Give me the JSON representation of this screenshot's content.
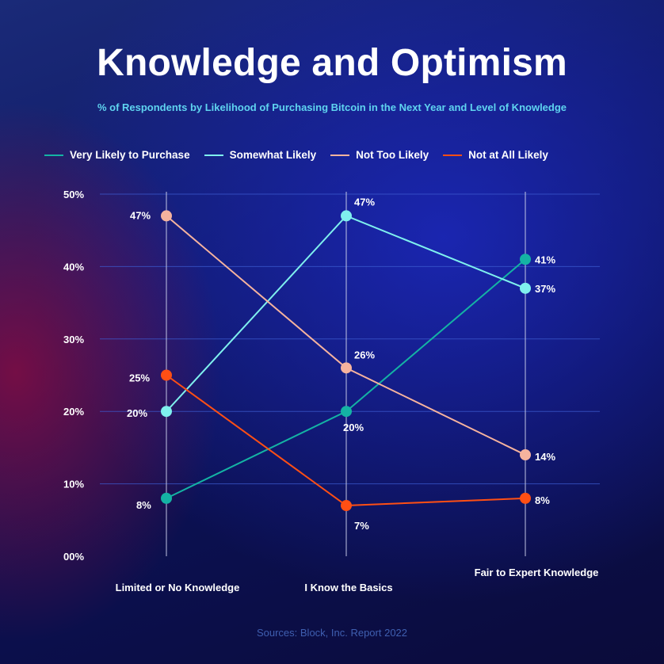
{
  "header": {
    "title": "Knowledge and Optimism",
    "subtitle": "% of Respondents by Likelihood of Purchasing Bitcoin in the Next Year and Level of Knowledge"
  },
  "footer": {
    "source": "Sources: Block, Inc. Report 2022"
  },
  "chart_data": {
    "type": "line",
    "title": "Knowledge and Optimism",
    "subtitle": "% of Respondents by Likelihood of Purchasing Bitcoin in the Next Year and Level of Knowledge",
    "categories": [
      "Limited or No Knowledge",
      "I Know the Basics",
      "Fair to Expert Knowledge"
    ],
    "ylim": [
      0,
      50
    ],
    "yticks": [
      0,
      10,
      20,
      30,
      40,
      50
    ],
    "ytick_labels": [
      "00%",
      "10%",
      "20%",
      "30%",
      "40%",
      "50%"
    ],
    "grid": true,
    "legend_position": "top-left",
    "series": [
      {
        "name": "Very Likely to Purchase",
        "color": "#14b3a4",
        "values": [
          8,
          20,
          41
        ],
        "labels": [
          "8%",
          "20%",
          "41%"
        ]
      },
      {
        "name": "Somewhat Likely",
        "color": "#7ff0ee",
        "values": [
          20,
          47,
          37
        ],
        "labels": [
          "20%",
          "47%",
          "37%"
        ]
      },
      {
        "name": "Not Too Likely",
        "color": "#f6b39e",
        "values": [
          47,
          26,
          14
        ],
        "labels": [
          "47%",
          "26%",
          "14%"
        ]
      },
      {
        "name": "Not at All Likely",
        "color": "#ff4f14",
        "values": [
          25,
          7,
          8
        ],
        "labels": [
          "25%",
          "7%",
          "8%"
        ]
      }
    ]
  }
}
